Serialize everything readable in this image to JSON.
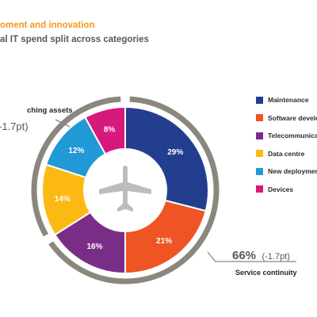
{
  "header": {
    "title": "oment and innovation",
    "subtitle": "al IT spend split across categories"
  },
  "chart_data": {
    "type": "pie",
    "style": "donut",
    "categories": [
      "Maintenance",
      "Software develo",
      "Telecommunica",
      "Data centre",
      "New deployment",
      "Devices"
    ],
    "values": [
      29,
      21,
      16,
      14,
      12,
      8
    ],
    "value_labels": [
      "29%",
      "21%",
      "16%",
      "14%",
      "12%",
      "8%"
    ],
    "colors": [
      "#243e8f",
      "#ef5424",
      "#7a2d86",
      "#fdb913",
      "#2199d6",
      "#d7197d"
    ],
    "legend_position": "right",
    "groups": [
      {
        "label": "ching assets",
        "value_text": "-1.7pt)",
        "segments": [
          3,
          4,
          5
        ]
      },
      {
        "label": "Service continuity",
        "value_text": "66%",
        "change_text": "(-1.7pt)",
        "segments": [
          0,
          1,
          2
        ]
      }
    ],
    "center_icon": "airplane-icon"
  },
  "colors": {
    "title_accent": "#f39a1e",
    "subtitle": "#58585a",
    "group_ring": "#8b877e"
  }
}
